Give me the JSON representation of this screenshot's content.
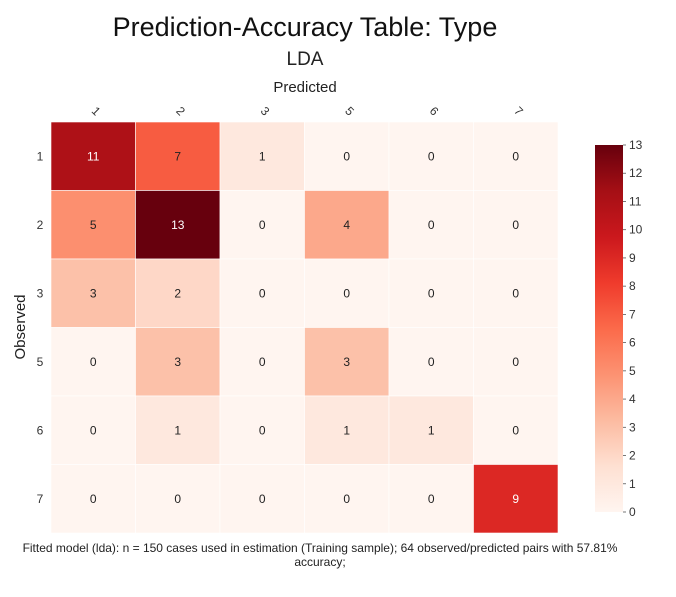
{
  "chart_data": {
    "type": "heatmap",
    "title": "Prediction-Accuracy Table: Type",
    "subtitle": "LDA",
    "xlabel": "Predicted",
    "ylabel": "Observed",
    "x_categories": [
      "1",
      "2",
      "3",
      "5",
      "6",
      "7"
    ],
    "y_categories": [
      "1",
      "2",
      "3",
      "5",
      "6",
      "7"
    ],
    "values": [
      [
        11,
        7,
        1,
        0,
        0,
        0
      ],
      [
        5,
        13,
        0,
        4,
        0,
        0
      ],
      [
        3,
        2,
        0,
        0,
        0,
        0
      ],
      [
        0,
        3,
        0,
        3,
        0,
        0
      ],
      [
        0,
        1,
        0,
        1,
        1,
        0
      ],
      [
        0,
        0,
        0,
        0,
        0,
        9
      ]
    ],
    "colorbar": {
      "min": 0,
      "max": 13,
      "ticks": [
        "0",
        "1",
        "2",
        "3",
        "4",
        "5",
        "6",
        "7",
        "8",
        "9",
        "10",
        "11",
        "12",
        "13"
      ],
      "colors": [
        "#fff5f0",
        "#fee0d2",
        "#fcbba1",
        "#fc9272",
        "#fb6a4a",
        "#ef3b2c",
        "#cb181d",
        "#a50f15",
        "#67000d"
      ]
    },
    "footnote": "Fitted model (lda): n = 150 cases used in estimation (Training sample); 64 observed/predicted pairs with 57.81% accuracy;"
  }
}
